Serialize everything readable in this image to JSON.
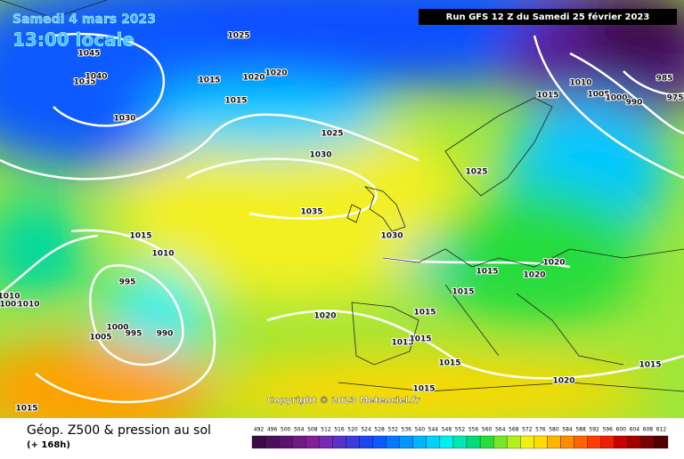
{
  "header": {
    "date": "Samedi 4 mars 2023",
    "time": "13:00 locale",
    "run": "Run GFS 12 Z du Samedi 25 février 2023"
  },
  "copyright": "Copyright © 2023 Meteociel.fr",
  "footer": {
    "title": "Géop. Z500 & pression au sol",
    "lead": "(+ 168h)"
  },
  "isobar_labels": [
    1045,
    1035,
    1040,
    1030,
    1025,
    1015,
    1020,
    1020,
    1015,
    1025,
    1030,
    1035,
    1030,
    1015,
    1010,
    995,
    1010,
    1005,
    1010,
    1000,
    995,
    990,
    1005,
    1020,
    1025,
    1015,
    1010,
    1005,
    1000,
    990,
    985,
    975,
    1015,
    1020,
    1020,
    1015,
    1015,
    1015,
    1015,
    1015,
    1015,
    1015,
    1020,
    1015
  ],
  "scale": {
    "values": [
      492,
      496,
      500,
      504,
      508,
      512,
      516,
      520,
      524,
      528,
      532,
      536,
      540,
      544,
      548,
      552,
      556,
      560,
      564,
      568,
      572,
      576,
      580,
      584,
      588,
      592,
      596,
      600,
      604,
      608,
      612
    ],
    "colors": [
      "#3c0a46",
      "#4b0f5a",
      "#5a146e",
      "#6e1a82",
      "#821e96",
      "#7828b4",
      "#5a32c8",
      "#3c3cdc",
      "#1e46f0",
      "#0a5aff",
      "#0078ff",
      "#0096ff",
      "#00b4ff",
      "#00d2ff",
      "#00f0f0",
      "#00e6b4",
      "#00dc78",
      "#28dc3c",
      "#78e628",
      "#b4f01e",
      "#f0f014",
      "#ffdc00",
      "#ffb400",
      "#ff8c00",
      "#ff6400",
      "#ff3c00",
      "#f01e00",
      "#c80000",
      "#a00000",
      "#780000",
      "#500000"
    ]
  }
}
